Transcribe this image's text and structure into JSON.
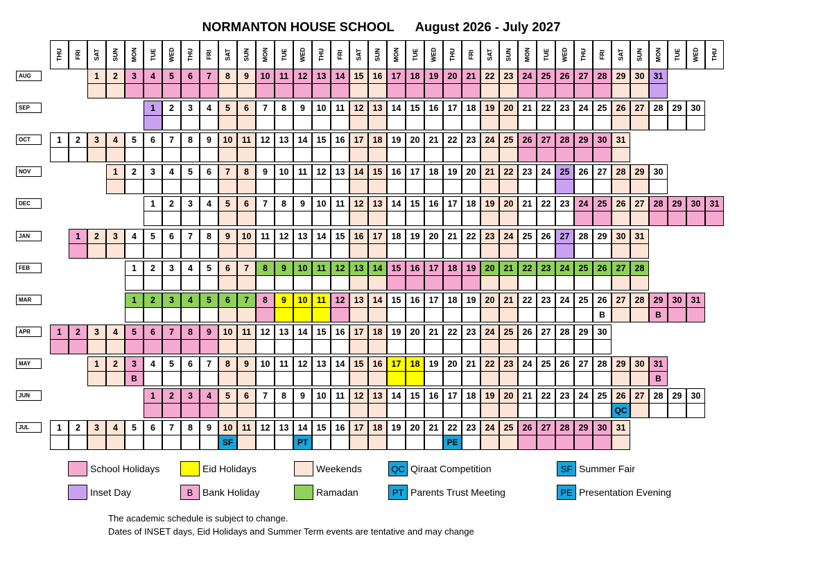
{
  "header": {
    "school": "NORMANTON HOUSE SCHOOL",
    "period": "August 2026 - July 2027"
  },
  "day_headers": [
    "THU",
    "FRI",
    "SAT",
    "SUN",
    "MON",
    "TUE",
    "WED",
    "THU",
    "FRI",
    "SAT",
    "SUN",
    "MON",
    "TUE",
    "WED",
    "THU",
    "FRI",
    "SAT",
    "SUN",
    "MON",
    "TUE",
    "WED",
    "THU",
    "FRI",
    "SAT",
    "SUN",
    "MON",
    "TUE",
    "WED",
    "THU",
    "FRI",
    "SAT",
    "SUN",
    "MON",
    "TUE",
    "WED",
    "THU"
  ],
  "colors": {
    "school_holiday": "#f5a8d0",
    "inset_day": "#c8a2f0",
    "eid_holiday": "#ffff00",
    "weekend": "#fce4d6",
    "ramadan": "#8fd15a",
    "event": "#1aa3dc"
  },
  "months": [
    {
      "label": "AUG",
      "start_col": 2,
      "days": 31,
      "school": [
        3,
        4,
        5,
        6,
        7,
        10,
        11,
        12,
        13,
        14,
        17,
        18,
        19,
        20,
        21,
        24,
        25,
        26,
        27,
        28
      ],
      "inset": [
        31
      ],
      "eid": [],
      "ramadan": [],
      "events": {}
    },
    {
      "label": "SEP",
      "start_col": 5,
      "days": 30,
      "school": [],
      "inset": [
        1
      ],
      "eid": [],
      "ramadan": [],
      "events": {}
    },
    {
      "label": "OCT",
      "start_col": 0,
      "days": 31,
      "school": [
        26,
        27,
        28,
        29,
        30
      ],
      "inset": [],
      "eid": [],
      "ramadan": [],
      "events": {}
    },
    {
      "label": "NOV",
      "start_col": 3,
      "days": 30,
      "school": [],
      "inset": [
        25
      ],
      "eid": [],
      "ramadan": [],
      "events": {}
    },
    {
      "label": "DEC",
      "start_col": 5,
      "days": 31,
      "school": [
        24,
        25,
        28,
        29,
        30,
        31
      ],
      "inset": [],
      "eid": [],
      "ramadan": [],
      "events": {}
    },
    {
      "label": "JAN",
      "start_col": 1,
      "days": 31,
      "school": [
        1
      ],
      "inset": [
        27
      ],
      "eid": [],
      "ramadan": [],
      "events": {}
    },
    {
      "label": "FEB",
      "start_col": 4,
      "days": 28,
      "school": [
        15,
        16,
        17,
        18,
        19
      ],
      "inset": [],
      "eid": [],
      "ramadan": [
        8,
        9,
        10,
        11,
        12,
        13,
        14,
        15,
        16,
        17,
        18,
        19,
        20,
        21,
        22,
        23,
        24,
        25,
        26,
        27,
        28
      ],
      "events": {}
    },
    {
      "label": "MAR",
      "start_col": 4,
      "days": 31,
      "school": [
        8,
        12,
        29,
        30,
        31
      ],
      "inset": [],
      "eid": [
        9,
        10,
        11
      ],
      "ramadan": [
        1,
        2,
        3,
        4,
        5,
        6,
        7,
        8
      ],
      "events": {
        "26": "B",
        "29": "B"
      }
    },
    {
      "label": "APR",
      "start_col": 0,
      "days": 30,
      "school": [
        1,
        2,
        5,
        6,
        7,
        8,
        9
      ],
      "inset": [],
      "eid": [],
      "ramadan": [],
      "events": {}
    },
    {
      "label": "MAY",
      "start_col": 2,
      "days": 31,
      "school": [
        3,
        31
      ],
      "inset": [],
      "eid": [
        17,
        18
      ],
      "ramadan": [],
      "events": {
        "3": "B",
        "31": "B"
      }
    },
    {
      "label": "JUN",
      "start_col": 5,
      "days": 30,
      "school": [
        1,
        2,
        3,
        4
      ],
      "inset": [],
      "eid": [],
      "ramadan": [],
      "events": {
        "26": "QC"
      }
    },
    {
      "label": "JUL",
      "start_col": 0,
      "days": 31,
      "school": [
        26,
        27,
        28,
        29,
        30
      ],
      "inset": [],
      "eid": [],
      "ramadan": [],
      "events": {
        "10": "SF",
        "14": "PT",
        "22": "PE"
      }
    }
  ],
  "legend": [
    {
      "key": "school_holiday",
      "swatch": "",
      "label": "School Holidays"
    },
    {
      "key": "eid_holiday",
      "swatch": "",
      "label": "Eid Holidays"
    },
    {
      "key": "weekend",
      "swatch": "",
      "label": "Weekends"
    },
    {
      "key": "event",
      "swatch": "QC",
      "label": "Qiraat Competition"
    },
    {
      "key": "event",
      "swatch": "SF",
      "label": "Summer Fair"
    },
    {
      "key": "inset_day",
      "swatch": "",
      "label": "Inset Day"
    },
    {
      "key": "school_holiday",
      "swatch": "B",
      "label": "Bank Holiday"
    },
    {
      "key": "ramadan",
      "swatch": "",
      "label": "Ramadan"
    },
    {
      "key": "event",
      "swatch": "PT",
      "label": "Parents Trust Meeting"
    },
    {
      "key": "event",
      "swatch": "PE",
      "label": "Presentation Evening"
    }
  ],
  "notes": [
    "The academic schedule is subject to change.",
    "Dates of INSET days, Eid Holidays and Summer Term events are tentative and may change"
  ]
}
